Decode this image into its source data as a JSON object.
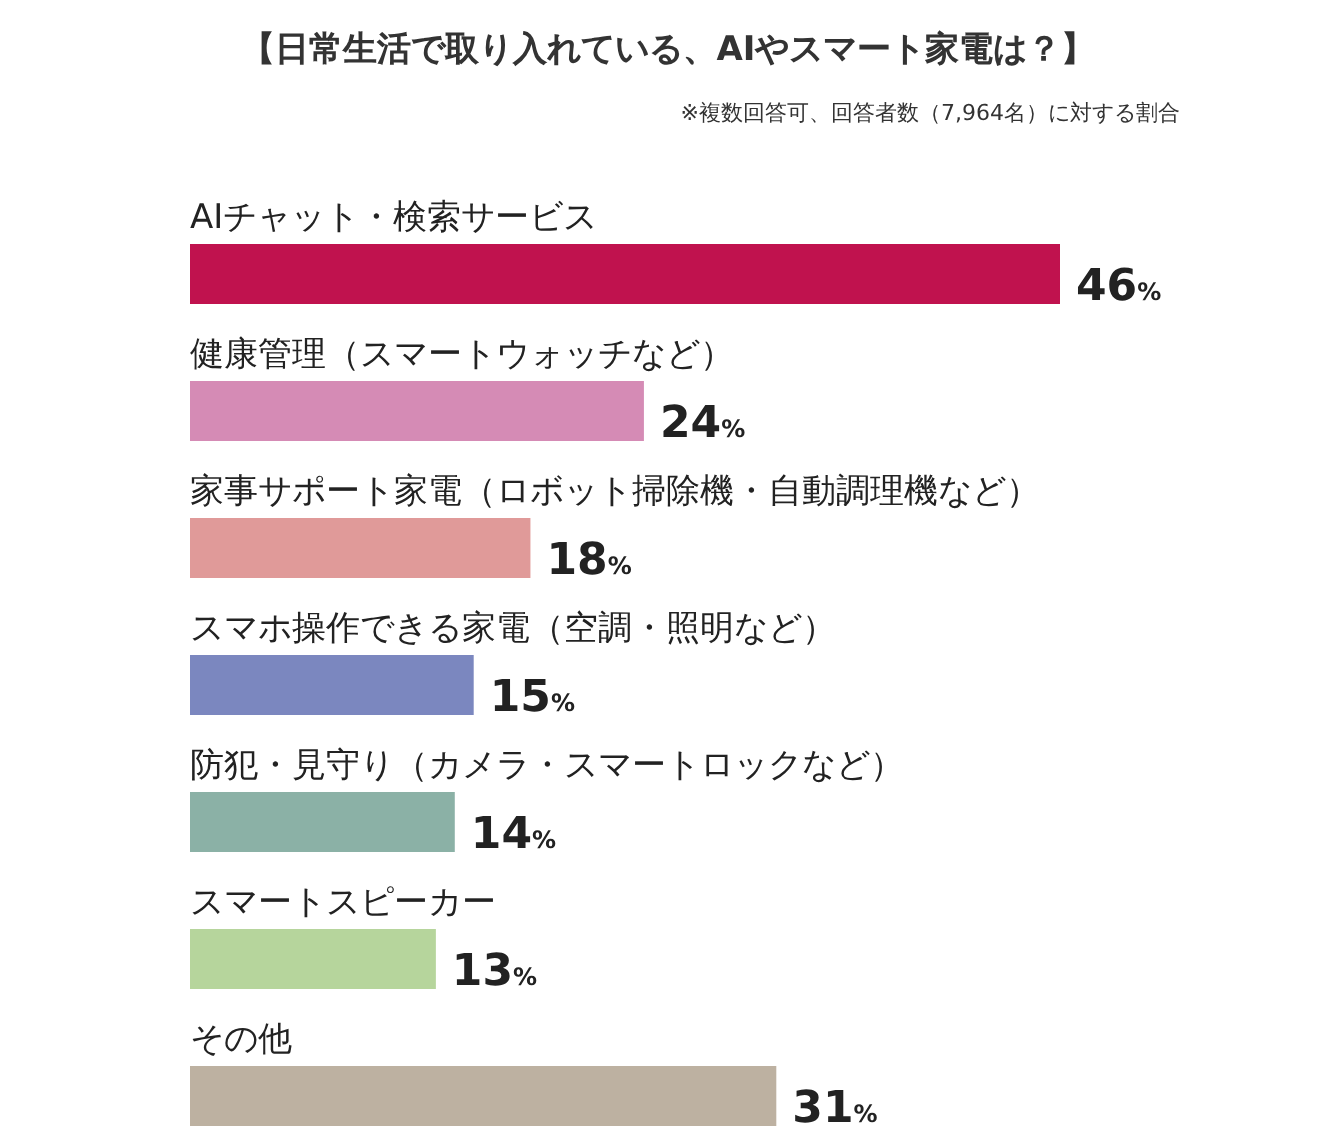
{
  "chart_data": {
    "type": "bar",
    "orientation": "horizontal",
    "title": "【日常生活で取り入れている、AIやスマート家電は？】",
    "subtitle": "※複数回答可、回答者数（7,964名）に対する割合",
    "categories": [
      "AIチャット・検索サービス",
      "健康管理（スマートウォッチなど）",
      "家事サポート家電（ロボット掃除機・自動調理機など）",
      "スマホ操作できる家電（空調・照明など）",
      "防犯・見守り（カメラ・スマートロックなど）",
      "スマートスピーカー",
      "その他"
    ],
    "values": [
      46,
      24,
      18,
      15,
      14,
      13,
      31
    ],
    "value_labels": [
      "46%",
      "24%",
      "18%",
      "15%",
      "14%",
      "13%",
      "31%"
    ],
    "colors": [
      "#c0124e",
      "#d58bb5",
      "#e09a99",
      "#7b87bf",
      "#8bb1a6",
      "#b6d59c",
      "#bdb1a1"
    ]
  }
}
